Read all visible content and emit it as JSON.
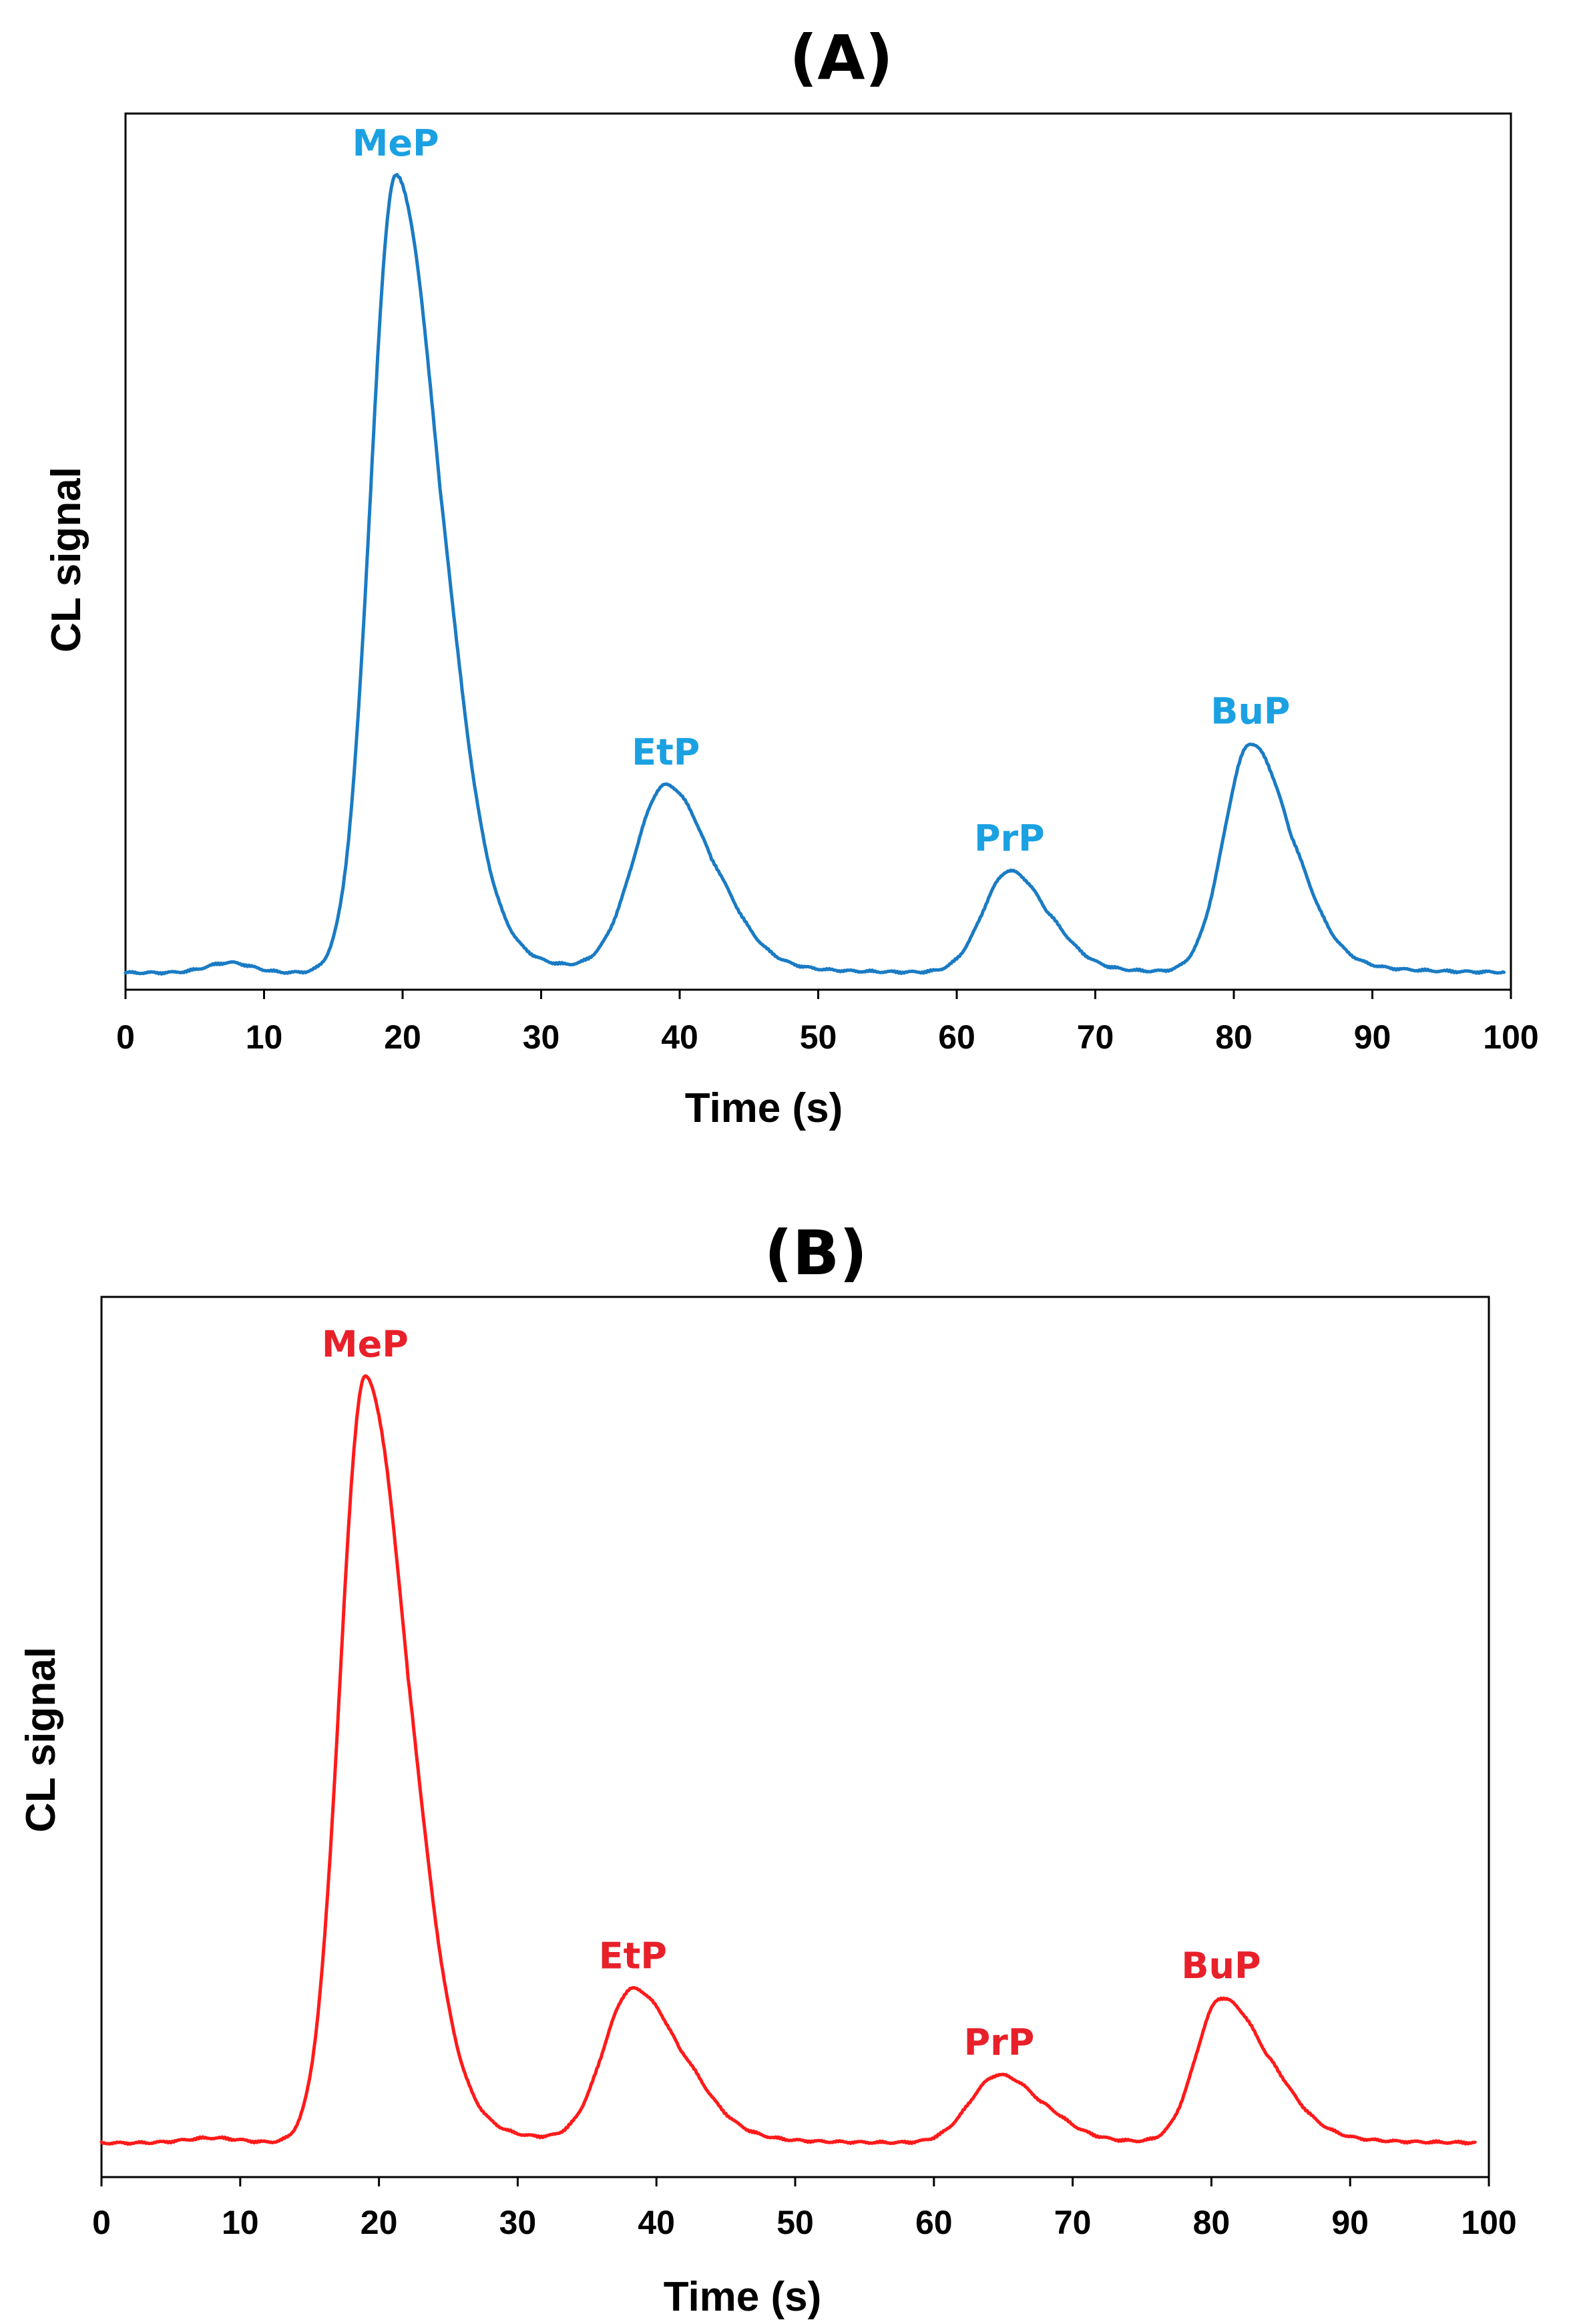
{
  "chart_data": [
    {
      "type": "line",
      "panel_label": "(A)",
      "title": "(A)",
      "xlabel": "Time (s)",
      "ylabel": "CL signal",
      "xlim": [
        0,
        100
      ],
      "ylim": [
        0,
        1
      ],
      "grid": false,
      "x_ticks": [
        0,
        10,
        20,
        30,
        40,
        50,
        60,
        70,
        80,
        90,
        100
      ],
      "x_tick_labels": [
        "0",
        "10",
        "20",
        "30",
        "40",
        "50",
        "60",
        "70",
        "80",
        "90",
        "100"
      ],
      "y_ticks_visible": false,
      "color": "#1a7bc4",
      "label_color": "#1ba1e2",
      "x_range": [
        0,
        99.5
      ],
      "baseline": 0.02,
      "drift": 0.0,
      "bump": {
        "t": 7.5,
        "height": 0.012,
        "width": 1.6
      },
      "peaks": [
        {
          "name": "MeP",
          "t": 19.5,
          "height": 0.94,
          "rise": 1.8,
          "fall": 3.2,
          "tail_height": 0.06,
          "tail_decay": 4.5
        },
        {
          "name": "EtP",
          "t": 39.0,
          "height": 0.22,
          "rise": 2.3,
          "fall": 3.3,
          "tail_height": 0.025,
          "tail_decay": 4.0
        },
        {
          "name": "PrP",
          "t": 63.8,
          "height": 0.12,
          "rise": 1.9,
          "fall": 2.7,
          "tail_height": 0.015,
          "tail_decay": 3.5
        },
        {
          "name": "BuP",
          "t": 81.2,
          "height": 0.27,
          "rise": 1.9,
          "fall": 2.9,
          "tail_height": 0.03,
          "tail_decay": 4.0
        }
      ]
    },
    {
      "type": "line",
      "panel_label": "(B)",
      "title": "(B)",
      "xlabel": "Time (s)",
      "ylabel": "CL signal",
      "xlim": [
        0,
        100
      ],
      "ylim": [
        0,
        1
      ],
      "grid": false,
      "x_ticks": [
        0,
        10,
        20,
        30,
        40,
        50,
        60,
        70,
        80,
        90,
        100
      ],
      "x_tick_labels": [
        "0",
        "10",
        "20",
        "30",
        "40",
        "50",
        "60",
        "70",
        "80",
        "90",
        "100"
      ],
      "y_ticks_visible": false,
      "color": "#ff1a1a",
      "label_color": "#e8202a",
      "x_range": [
        0,
        99.0
      ],
      "baseline": 0.04,
      "drift": 0.0,
      "bump": {
        "t": 8.0,
        "height": 0.006,
        "width": 2.0
      },
      "peaks": [
        {
          "name": "MeP",
          "t": 19.0,
          "height": 0.9,
          "rise": 1.8,
          "fall": 3.1,
          "tail_height": 0.055,
          "tail_decay": 4.5
        },
        {
          "name": "EtP",
          "t": 38.3,
          "height": 0.18,
          "rise": 2.1,
          "fall": 3.4,
          "tail_height": 0.022,
          "tail_decay": 4.0
        },
        {
          "name": "PrP",
          "t": 64.7,
          "height": 0.08,
          "rise": 2.1,
          "fall": 3.0,
          "tail_height": 0.012,
          "tail_decay": 3.5
        },
        {
          "name": "BuP",
          "t": 80.7,
          "height": 0.17,
          "rise": 1.8,
          "fall": 3.3,
          "tail_height": 0.02,
          "tail_decay": 4.0
        }
      ]
    }
  ]
}
